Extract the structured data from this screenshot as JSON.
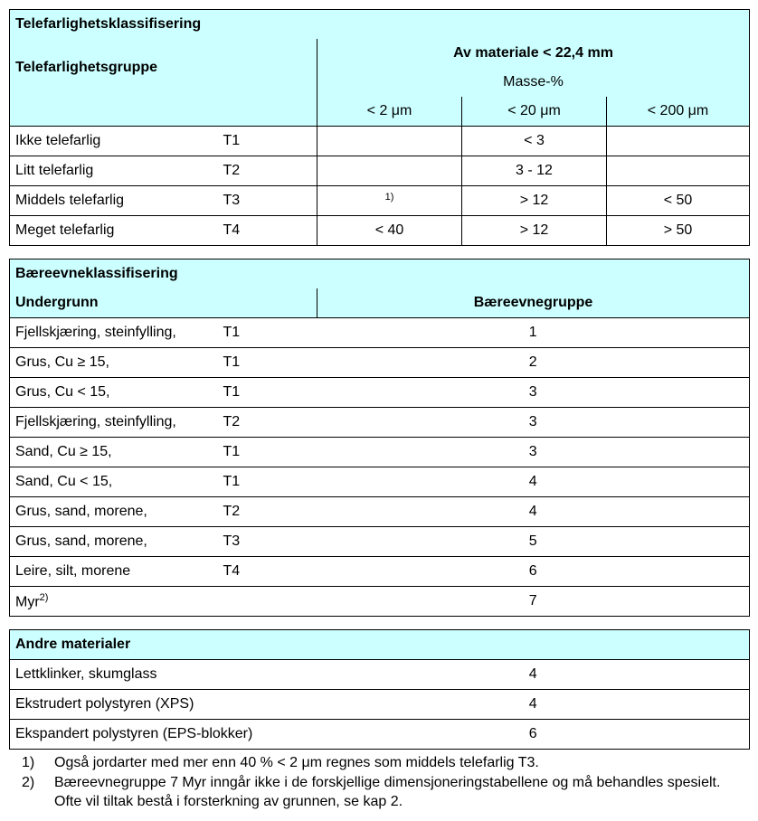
{
  "colors": {
    "header_bg": "#ccffff",
    "border": "#000000",
    "text": "#000000",
    "page_bg": "#ffffff"
  },
  "section1": {
    "title": "Telefarlighetsklassifisering",
    "group_label": "Telefarlighetsgruppe",
    "material_header": "Av materiale < 22,4 mm",
    "mass_label": "Masse-%",
    "col_lt2": "< 2 μm",
    "col_lt20": "< 20 μm",
    "col_lt200": "< 200 μm",
    "rows": [
      {
        "name": "Ikke telefarlig",
        "code": "T1",
        "c1": "",
        "c2": "< 3",
        "c3": ""
      },
      {
        "name": "Litt telefarlig",
        "code": "T2",
        "c1": "",
        "c2": "3 - 12",
        "c3": ""
      },
      {
        "name": "Middels telefarlig",
        "code": "T3",
        "c1": "1)",
        "c2": "> 12",
        "c3": "< 50"
      },
      {
        "name": "Meget telefarlig",
        "code": "T4",
        "c1": "< 40",
        "c2": "> 12",
        "c3": "> 50"
      }
    ]
  },
  "section2": {
    "title": "Bæreevneklassifisering",
    "col_undergrunn": "Undergrunn",
    "col_gruppe": "Bæreevnegruppe",
    "rows": [
      {
        "name": "Fjellskjæring, steinfylling,",
        "code": "T1",
        "grp": "1"
      },
      {
        "name": "Grus, Cu ≥ 15,",
        "code": "T1",
        "grp": "2"
      },
      {
        "name": "Grus, Cu < 15,",
        "code": "T1",
        "grp": "3"
      },
      {
        "name": "Fjellskjæring, steinfylling,",
        "code": "T2",
        "grp": "3"
      },
      {
        "name": "Sand, Cu ≥ 15,",
        "code": "T1",
        "grp": "3"
      },
      {
        "name": "Sand, Cu < 15,",
        "code": "T1",
        "grp": "4"
      },
      {
        "name": "Grus, sand, morene,",
        "code": "T2",
        "grp": "4"
      },
      {
        "name": "Grus, sand, morene,",
        "code": "T3",
        "grp": "5"
      },
      {
        "name": "Leire, silt, morene",
        "code": "T4",
        "grp": "6"
      }
    ],
    "myr_label": "Myr",
    "myr_sup": "2)",
    "myr_grp": "7"
  },
  "section3": {
    "title": "Andre materialer",
    "rows": [
      {
        "name": "Lettklinker, skumglass",
        "grp": "4"
      },
      {
        "name": "Ekstrudert polystyren (XPS)",
        "grp": "4"
      },
      {
        "name": "Ekspandert polystyren (EPS-blokker)",
        "grp": "6"
      }
    ]
  },
  "footnotes": [
    {
      "num": "1)",
      "text": "Også jordarter med mer enn 40 % < 2 μm regnes som middels telefarlig T3."
    },
    {
      "num": "2)",
      "text": "Bæreevnegruppe 7 Myr inngår ikke i de forskjellige dimensjoneringstabellene og må behandles spesielt. Ofte vil tiltak bestå i forsterkning av grunnen, se kap 2."
    }
  ]
}
